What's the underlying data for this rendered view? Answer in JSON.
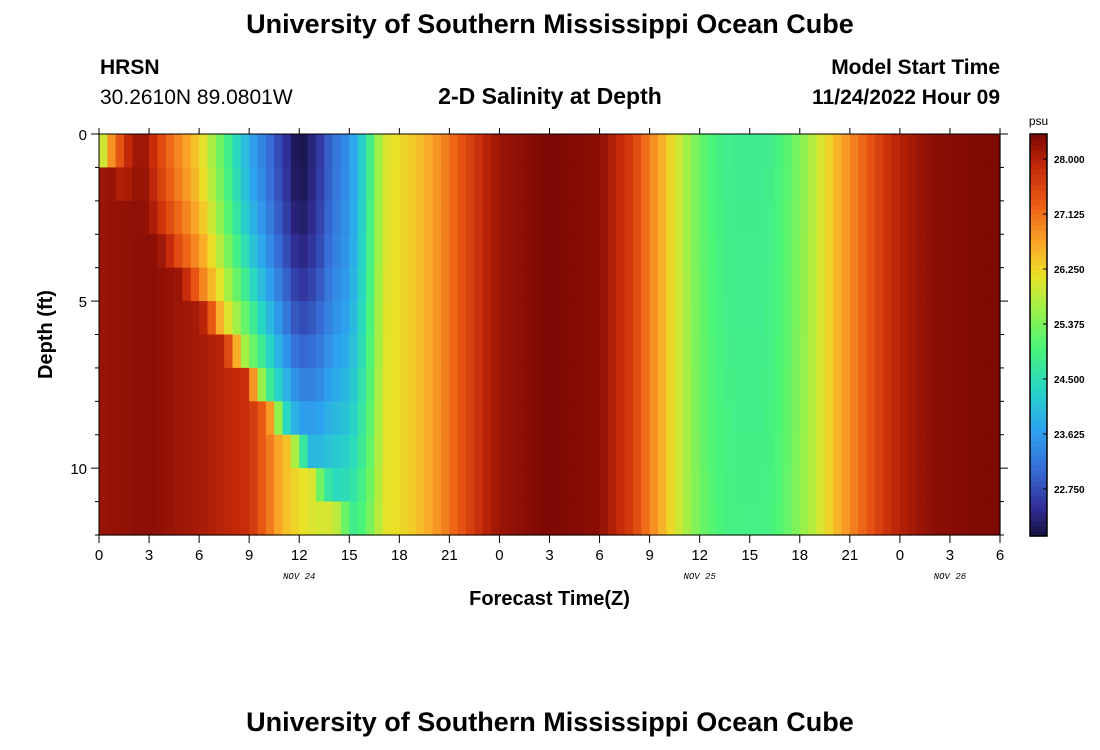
{
  "header": {
    "title": "University of Southern Mississippi Ocean Cube",
    "station": "HRSN",
    "coords": "30.2610N  89.0801W",
    "subtitle": "2-D Salinity at Depth",
    "start_label": "Model Start Time",
    "start_value": "11/24/2022 Hour 09"
  },
  "footer": {
    "title": "University of Southern Mississippi Ocean Cube"
  },
  "chart_data": {
    "type": "heatmap",
    "title": "2-D Salinity at Depth",
    "xlabel": "Forecast Time(Z)",
    "ylabel": "Depth (ft)",
    "x_range_hours": [
      0,
      54
    ],
    "y_range_ft": [
      0,
      12
    ],
    "y_inverted": true,
    "x_tick_labels": [
      "0",
      "3",
      "6",
      "9",
      "12",
      "15",
      "18",
      "21",
      "0",
      "3",
      "6",
      "9",
      "12",
      "15",
      "18",
      "21",
      "0",
      "3",
      "6"
    ],
    "y_tick_labels": [
      "0",
      "5",
      "10"
    ],
    "y_ticks": [
      0,
      5,
      10
    ],
    "date_labels": [
      {
        "text": "NOV 24",
        "x": 12
      },
      {
        "text": "NOV 25",
        "x": 36
      },
      {
        "text": "NOV 26",
        "x": 51
      }
    ],
    "colorbar": {
      "unit": "psu",
      "labels": [
        "28.000",
        "27.125",
        "26.250",
        "25.375",
        "24.500",
        "23.625",
        "22.750"
      ],
      "range": [
        22.0,
        28.4
      ]
    },
    "surface_profile": [
      [
        0,
        24.3
      ],
      [
        0.5,
        25.6
      ],
      [
        1,
        26.8
      ],
      [
        1.5,
        27.7
      ],
      [
        2.5,
        28.3
      ],
      [
        3,
        28.0
      ],
      [
        4,
        27.3
      ],
      [
        5,
        26.8
      ],
      [
        6,
        26.3
      ],
      [
        7,
        25.5
      ],
      [
        8,
        24.6
      ],
      [
        9,
        23.8
      ],
      [
        10,
        23.2
      ],
      [
        11,
        22.6
      ],
      [
        12,
        22.0
      ],
      [
        13,
        22.4
      ],
      [
        14,
        23.1
      ],
      [
        15,
        23.5
      ],
      [
        16,
        24.5
      ],
      [
        17,
        26.0
      ],
      [
        18,
        26.2
      ],
      [
        19,
        26.4
      ],
      [
        20,
        26.7
      ],
      [
        21,
        27.1
      ],
      [
        22,
        27.5
      ],
      [
        23,
        27.9
      ],
      [
        24,
        28.2
      ],
      [
        27,
        28.4
      ],
      [
        30,
        28.3
      ],
      [
        32,
        27.6
      ],
      [
        33,
        27.0
      ],
      [
        34,
        26.4
      ],
      [
        35,
        25.8
      ],
      [
        36,
        25.2
      ],
      [
        37,
        24.9
      ],
      [
        38,
        24.8
      ],
      [
        40,
        24.8
      ],
      [
        41,
        25.0
      ],
      [
        42,
        25.4
      ],
      [
        43,
        25.9
      ],
      [
        44,
        26.4
      ],
      [
        45,
        26.9
      ],
      [
        46,
        27.3
      ],
      [
        47,
        27.7
      ],
      [
        48,
        28.0
      ],
      [
        50,
        28.3
      ],
      [
        54,
        28.4
      ]
    ],
    "bottom_profile": [
      [
        0,
        28.2
      ],
      [
        3,
        28.3
      ],
      [
        6,
        28.1
      ],
      [
        9,
        27.8
      ],
      [
        10,
        27.2
      ],
      [
        11,
        26.5
      ],
      [
        12,
        26.2
      ],
      [
        13,
        26.0
      ],
      [
        14,
        26.0
      ],
      [
        15,
        26.0
      ],
      [
        16,
        26.0
      ],
      [
        17,
        26.1
      ],
      [
        18,
        26.2
      ],
      [
        19,
        26.4
      ],
      [
        20,
        26.7
      ],
      [
        21,
        27.1
      ],
      [
        22,
        27.5
      ],
      [
        23,
        27.9
      ],
      [
        24,
        28.2
      ],
      [
        27,
        28.4
      ],
      [
        30,
        28.3
      ],
      [
        32,
        27.6
      ],
      [
        33,
        27.0
      ],
      [
        34,
        26.4
      ],
      [
        35,
        25.8
      ],
      [
        36,
        25.3
      ],
      [
        37,
        25.0
      ],
      [
        38,
        24.9
      ],
      [
        40,
        24.9
      ],
      [
        41,
        25.1
      ],
      [
        42,
        25.5
      ],
      [
        43,
        25.9
      ],
      [
        44,
        26.4
      ],
      [
        45,
        26.9
      ],
      [
        46,
        27.3
      ],
      [
        47,
        27.7
      ],
      [
        48,
        28.0
      ],
      [
        50,
        28.3
      ],
      [
        54,
        28.4
      ]
    ],
    "fresh_lens": {
      "x_start": 0,
      "x_end": 17,
      "depth_start_ft": 0,
      "depth_end_ft": 12,
      "deepening_rate_ft_per_hr": 0.75
    }
  }
}
